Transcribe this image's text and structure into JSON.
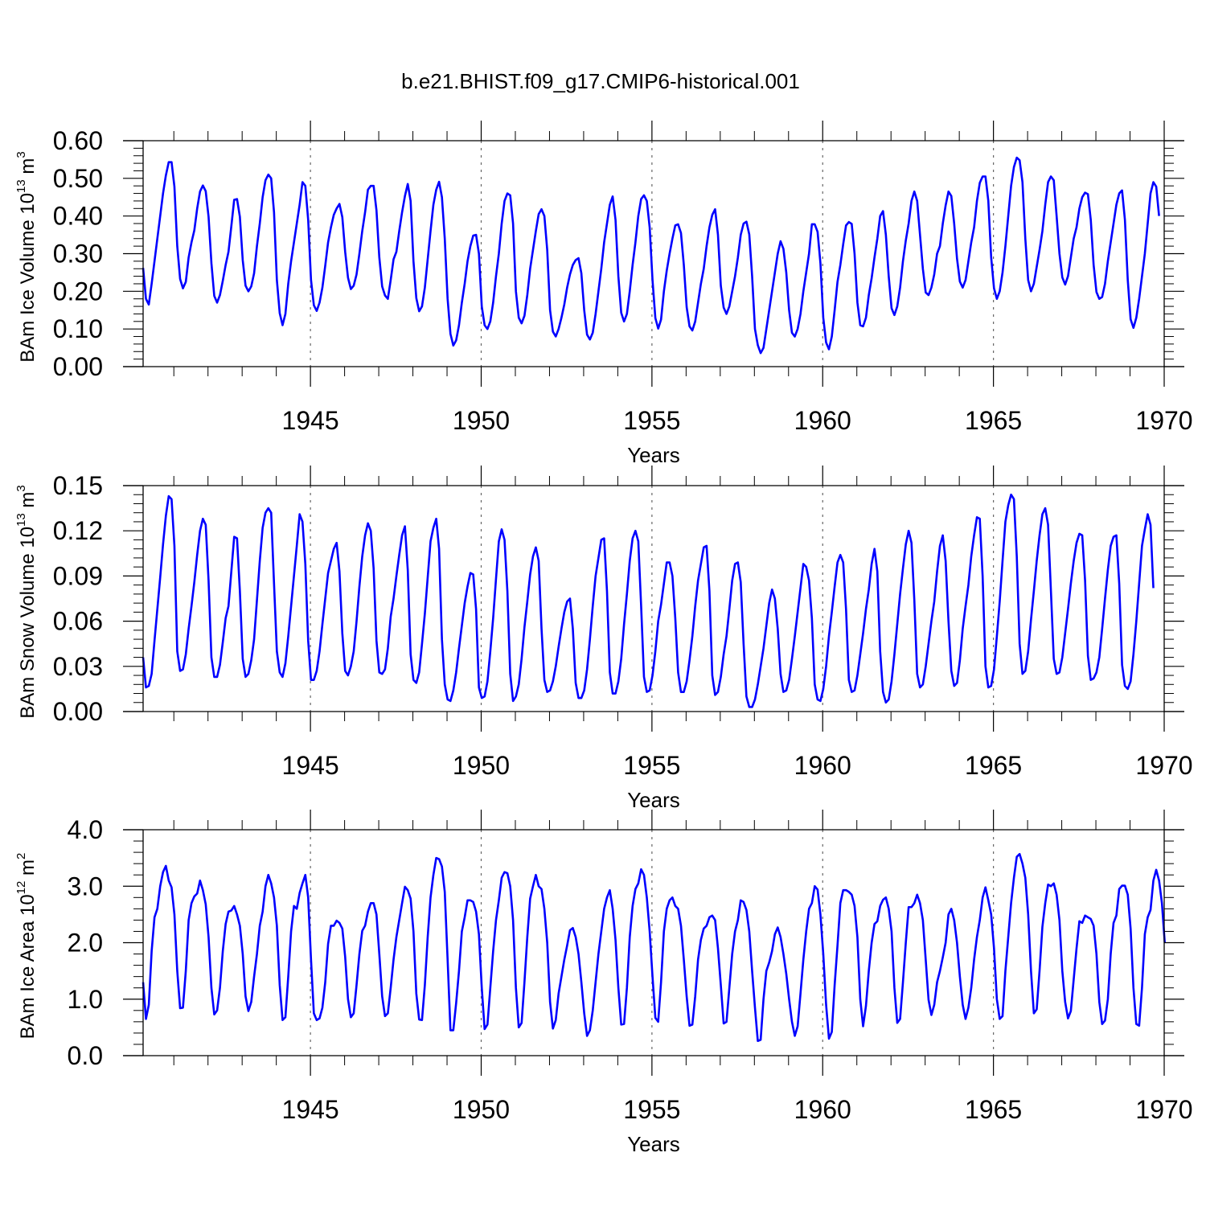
{
  "title": "b.e21.BHIST.f09_g17.CMIP6-historical.001",
  "series_color": "#0000ff",
  "chart_data": [
    {
      "type": "line",
      "name": "ice-volume",
      "ylabel_main": "BAm Ice Volume 10",
      "ylabel_exp": "13",
      "ylabel_unit": " m",
      "ylabel_unit_exp": "3",
      "xlabel": "Years",
      "xlim": [
        1940.1,
        1970.0
      ],
      "ylim": [
        0.0,
        0.6
      ],
      "yticks": [
        0.0,
        0.1,
        0.2,
        0.3,
        0.4,
        0.5,
        0.6
      ],
      "ytick_labels": [
        "0.00",
        "0.10",
        "0.20",
        "0.30",
        "0.40",
        "0.50",
        "0.60"
      ],
      "xticks": [
        1945,
        1950,
        1955,
        1960,
        1965,
        1970
      ],
      "xtick_labels": [
        "1945",
        "1950",
        "1955",
        "1960",
        "1965",
        "1970"
      ],
      "gridlines_x": [
        1945,
        1950,
        1955,
        1960,
        1965
      ],
      "x_start": 1940.1,
      "x_step": 0.0833333,
      "values": [
        0.262,
        0.18,
        0.165,
        0.22,
        0.28,
        0.34,
        0.4,
        0.46,
        0.508,
        0.543,
        0.543,
        0.478,
        0.32,
        0.233,
        0.208,
        0.225,
        0.29,
        0.33,
        0.362,
        0.42,
        0.465,
        0.481,
        0.466,
        0.398,
        0.275,
        0.188,
        0.17,
        0.19,
        0.228,
        0.27,
        0.305,
        0.373,
        0.443,
        0.445,
        0.398,
        0.283,
        0.215,
        0.2,
        0.213,
        0.248,
        0.32,
        0.38,
        0.45,
        0.495,
        0.51,
        0.5,
        0.41,
        0.23,
        0.142,
        0.11,
        0.14,
        0.22,
        0.28,
        0.33,
        0.38,
        0.43,
        0.49,
        0.48,
        0.39,
        0.23,
        0.163,
        0.148,
        0.17,
        0.21,
        0.268,
        0.33,
        0.37,
        0.403,
        0.42,
        0.432,
        0.397,
        0.305,
        0.236,
        0.206,
        0.215,
        0.245,
        0.3,
        0.36,
        0.41,
        0.47,
        0.48,
        0.48,
        0.415,
        0.29,
        0.213,
        0.189,
        0.18,
        0.23,
        0.285,
        0.305,
        0.36,
        0.41,
        0.453,
        0.485,
        0.44,
        0.28,
        0.182,
        0.147,
        0.16,
        0.21,
        0.285,
        0.36,
        0.43,
        0.47,
        0.491,
        0.45,
        0.34,
        0.18,
        0.087,
        0.056,
        0.07,
        0.11,
        0.17,
        0.22,
        0.28,
        0.32,
        0.348,
        0.35,
        0.3,
        0.16,
        0.11,
        0.1,
        0.12,
        0.17,
        0.24,
        0.3,
        0.38,
        0.44,
        0.46,
        0.455,
        0.38,
        0.2,
        0.13,
        0.115,
        0.135,
        0.19,
        0.26,
        0.31,
        0.36,
        0.405,
        0.418,
        0.4,
        0.31,
        0.15,
        0.093,
        0.08,
        0.1,
        0.13,
        0.165,
        0.21,
        0.245,
        0.27,
        0.283,
        0.288,
        0.248,
        0.15,
        0.085,
        0.072,
        0.09,
        0.14,
        0.2,
        0.26,
        0.33,
        0.38,
        0.43,
        0.452,
        0.39,
        0.24,
        0.143,
        0.12,
        0.14,
        0.2,
        0.27,
        0.33,
        0.4,
        0.445,
        0.455,
        0.44,
        0.37,
        0.23,
        0.129,
        0.101,
        0.125,
        0.2,
        0.255,
        0.3,
        0.34,
        0.375,
        0.378,
        0.355,
        0.27,
        0.158,
        0.107,
        0.096,
        0.12,
        0.17,
        0.22,
        0.26,
        0.32,
        0.37,
        0.403,
        0.418,
        0.35,
        0.215,
        0.157,
        0.14,
        0.16,
        0.2,
        0.24,
        0.29,
        0.35,
        0.38,
        0.385,
        0.351,
        0.24,
        0.1,
        0.057,
        0.036,
        0.05,
        0.1,
        0.15,
        0.2,
        0.25,
        0.3,
        0.333,
        0.313,
        0.25,
        0.15,
        0.09,
        0.08,
        0.1,
        0.14,
        0.2,
        0.25,
        0.3,
        0.378,
        0.378,
        0.358,
        0.275,
        0.13,
        0.064,
        0.046,
        0.08,
        0.15,
        0.225,
        0.27,
        0.325,
        0.375,
        0.384,
        0.379,
        0.3,
        0.17,
        0.11,
        0.107,
        0.13,
        0.19,
        0.235,
        0.29,
        0.34,
        0.4,
        0.413,
        0.35,
        0.24,
        0.155,
        0.137,
        0.16,
        0.21,
        0.28,
        0.335,
        0.38,
        0.44,
        0.465,
        0.44,
        0.35,
        0.26,
        0.197,
        0.19,
        0.21,
        0.245,
        0.3,
        0.32,
        0.38,
        0.428,
        0.465,
        0.453,
        0.38,
        0.287,
        0.226,
        0.21,
        0.23,
        0.28,
        0.33,
        0.37,
        0.44,
        0.488,
        0.505,
        0.505,
        0.44,
        0.29,
        0.208,
        0.18,
        0.2,
        0.25,
        0.32,
        0.4,
        0.48,
        0.53,
        0.555,
        0.548,
        0.49,
        0.34,
        0.23,
        0.2,
        0.22,
        0.265,
        0.31,
        0.36,
        0.43,
        0.49,
        0.505,
        0.495,
        0.4,
        0.3,
        0.237,
        0.218,
        0.24,
        0.29,
        0.34,
        0.37,
        0.42,
        0.45,
        0.462,
        0.458,
        0.39,
        0.27,
        0.198,
        0.18,
        0.185,
        0.22,
        0.28,
        0.33,
        0.38,
        0.43,
        0.46,
        0.468,
        0.39,
        0.23,
        0.126,
        0.103,
        0.13,
        0.18,
        0.24,
        0.3,
        0.38,
        0.46,
        0.49,
        0.478,
        0.4
      ]
    },
    {
      "type": "line",
      "name": "snow-volume",
      "ylabel_main": "BAm Snow Volume 10",
      "ylabel_exp": "13",
      "ylabel_unit": " m",
      "ylabel_unit_exp": "3",
      "xlabel": "Years",
      "xlim": [
        1940.1,
        1970.0
      ],
      "ylim": [
        0.0,
        0.15
      ],
      "yticks": [
        0.0,
        0.03,
        0.06,
        0.09,
        0.12,
        0.15
      ],
      "ytick_labels": [
        "0.00",
        "0.03",
        "0.06",
        "0.09",
        "0.12",
        "0.15"
      ],
      "xticks": [
        1945,
        1950,
        1955,
        1960,
        1965,
        1970
      ],
      "xtick_labels": [
        "1945",
        "1950",
        "1955",
        "1960",
        "1965",
        "1970"
      ],
      "gridlines_x": [
        1945,
        1950,
        1955,
        1960,
        1965
      ],
      "x_start": 1940.1,
      "x_step": 0.0833333,
      "values": [
        0.036,
        0.016,
        0.017,
        0.025,
        0.047,
        0.068,
        0.089,
        0.111,
        0.13,
        0.143,
        0.141,
        0.11,
        0.04,
        0.027,
        0.028,
        0.038,
        0.055,
        0.07,
        0.086,
        0.104,
        0.12,
        0.128,
        0.124,
        0.087,
        0.036,
        0.023,
        0.023,
        0.031,
        0.046,
        0.062,
        0.07,
        0.093,
        0.116,
        0.115,
        0.08,
        0.035,
        0.023,
        0.025,
        0.034,
        0.048,
        0.074,
        0.1,
        0.122,
        0.132,
        0.135,
        0.132,
        0.085,
        0.04,
        0.026,
        0.023,
        0.032,
        0.05,
        0.07,
        0.09,
        0.11,
        0.131,
        0.126,
        0.098,
        0.047,
        0.021,
        0.021,
        0.027,
        0.04,
        0.058,
        0.075,
        0.092,
        0.1,
        0.108,
        0.112,
        0.093,
        0.052,
        0.027,
        0.024,
        0.03,
        0.04,
        0.06,
        0.083,
        0.103,
        0.117,
        0.125,
        0.12,
        0.095,
        0.047,
        0.026,
        0.025,
        0.028,
        0.042,
        0.063,
        0.075,
        0.09,
        0.104,
        0.117,
        0.123,
        0.094,
        0.038,
        0.021,
        0.019,
        0.026,
        0.045,
        0.065,
        0.089,
        0.113,
        0.122,
        0.128,
        0.108,
        0.048,
        0.018,
        0.008,
        0.007,
        0.014,
        0.026,
        0.042,
        0.057,
        0.072,
        0.083,
        0.092,
        0.091,
        0.068,
        0.016,
        0.009,
        0.01,
        0.02,
        0.04,
        0.062,
        0.088,
        0.113,
        0.121,
        0.114,
        0.08,
        0.025,
        0.007,
        0.01,
        0.018,
        0.035,
        0.056,
        0.073,
        0.091,
        0.103,
        0.109,
        0.1,
        0.055,
        0.021,
        0.013,
        0.014,
        0.02,
        0.03,
        0.043,
        0.055,
        0.066,
        0.073,
        0.075,
        0.055,
        0.019,
        0.009,
        0.009,
        0.014,
        0.028,
        0.048,
        0.07,
        0.09,
        0.102,
        0.114,
        0.115,
        0.08,
        0.026,
        0.012,
        0.012,
        0.02,
        0.035,
        0.058,
        0.078,
        0.1,
        0.115,
        0.12,
        0.113,
        0.07,
        0.023,
        0.013,
        0.014,
        0.024,
        0.04,
        0.06,
        0.071,
        0.085,
        0.099,
        0.099,
        0.09,
        0.062,
        0.026,
        0.013,
        0.013,
        0.02,
        0.034,
        0.05,
        0.07,
        0.087,
        0.098,
        0.109,
        0.11,
        0.08,
        0.024,
        0.011,
        0.013,
        0.023,
        0.038,
        0.05,
        0.068,
        0.087,
        0.098,
        0.099,
        0.086,
        0.045,
        0.01,
        0.003,
        0.003,
        0.008,
        0.018,
        0.03,
        0.042,
        0.057,
        0.072,
        0.081,
        0.075,
        0.055,
        0.025,
        0.013,
        0.014,
        0.021,
        0.035,
        0.05,
        0.066,
        0.082,
        0.098,
        0.096,
        0.087,
        0.062,
        0.018,
        0.008,
        0.007,
        0.015,
        0.03,
        0.05,
        0.066,
        0.083,
        0.099,
        0.104,
        0.099,
        0.068,
        0.021,
        0.013,
        0.014,
        0.024,
        0.038,
        0.052,
        0.068,
        0.081,
        0.098,
        0.108,
        0.093,
        0.04,
        0.013,
        0.006,
        0.008,
        0.02,
        0.038,
        0.058,
        0.078,
        0.095,
        0.111,
        0.12,
        0.112,
        0.074,
        0.025,
        0.016,
        0.018,
        0.03,
        0.045,
        0.06,
        0.073,
        0.093,
        0.11,
        0.117,
        0.1,
        0.06,
        0.027,
        0.017,
        0.019,
        0.034,
        0.055,
        0.07,
        0.084,
        0.103,
        0.117,
        0.129,
        0.128,
        0.09,
        0.03,
        0.016,
        0.017,
        0.028,
        0.05,
        0.073,
        0.1,
        0.126,
        0.137,
        0.144,
        0.141,
        0.103,
        0.045,
        0.025,
        0.027,
        0.04,
        0.061,
        0.08,
        0.1,
        0.117,
        0.131,
        0.135,
        0.124,
        0.08,
        0.035,
        0.025,
        0.026,
        0.036,
        0.052,
        0.068,
        0.085,
        0.1,
        0.112,
        0.118,
        0.117,
        0.087,
        0.037,
        0.021,
        0.022,
        0.026,
        0.036,
        0.055,
        0.075,
        0.094,
        0.11,
        0.116,
        0.117,
        0.085,
        0.031,
        0.017,
        0.015,
        0.02,
        0.038,
        0.06,
        0.085,
        0.11,
        0.121,
        0.131,
        0.124,
        0.082
      ]
    },
    {
      "type": "line",
      "name": "ice-area",
      "ylabel_main": "BAm Ice Area 10",
      "ylabel_exp": "12",
      "ylabel_unit": " m",
      "ylabel_unit_exp": "2",
      "xlabel": "Years",
      "xlim": [
        1940.1,
        1970.0
      ],
      "ylim": [
        0.0,
        4.0
      ],
      "yticks": [
        0.0,
        1.0,
        2.0,
        3.0,
        4.0
      ],
      "ytick_labels": [
        "0.0",
        "1.0",
        "2.0",
        "3.0",
        "4.0"
      ],
      "xticks": [
        1945,
        1950,
        1955,
        1960,
        1965,
        1970
      ],
      "xtick_labels": [
        "1945",
        "1950",
        "1955",
        "1960",
        "1965",
        "1970"
      ],
      "gridlines_x": [
        1945,
        1950,
        1955,
        1960,
        1965
      ],
      "x_start": 1940.1,
      "x_step": 0.0833333,
      "values": [
        1.3,
        0.65,
        0.9,
        1.85,
        2.45,
        2.6,
        3.0,
        3.25,
        3.36,
        3.1,
        2.98,
        2.5,
        1.5,
        0.84,
        0.85,
        1.5,
        2.4,
        2.7,
        2.82,
        2.87,
        3.1,
        2.93,
        2.68,
        2.1,
        1.2,
        0.73,
        0.8,
        1.2,
        1.85,
        2.33,
        2.55,
        2.57,
        2.65,
        2.5,
        2.3,
        1.8,
        1.05,
        0.79,
        0.95,
        1.4,
        1.8,
        2.3,
        2.55,
        3.0,
        3.2,
        3.05,
        2.8,
        2.3,
        1.25,
        0.63,
        0.68,
        1.4,
        2.2,
        2.65,
        2.6,
        2.88,
        3.05,
        3.2,
        2.8,
        1.7,
        0.75,
        0.63,
        0.66,
        0.85,
        1.3,
        1.98,
        2.3,
        2.3,
        2.39,
        2.35,
        2.25,
        1.75,
        1.0,
        0.68,
        0.75,
        1.25,
        1.8,
        2.21,
        2.3,
        2.55,
        2.7,
        2.7,
        2.5,
        1.8,
        1.05,
        0.7,
        0.75,
        1.2,
        1.7,
        2.1,
        2.4,
        2.7,
        2.99,
        2.93,
        2.78,
        2.2,
        1.1,
        0.64,
        0.63,
        1.25,
        2.1,
        2.8,
        3.2,
        3.5,
        3.48,
        3.35,
        2.9,
        1.7,
        0.45,
        0.45,
        0.93,
        1.5,
        2.2,
        2.45,
        2.75,
        2.75,
        2.72,
        2.55,
        2.15,
        1.2,
        0.47,
        0.55,
        1.2,
        1.85,
        2.4,
        2.75,
        3.15,
        3.25,
        3.23,
        3.0,
        2.4,
        1.2,
        0.5,
        0.58,
        1.3,
        2.1,
        2.78,
        3.0,
        3.2,
        3.0,
        2.95,
        2.6,
        2.0,
        0.95,
        0.48,
        0.63,
        1.1,
        1.4,
        1.7,
        1.95,
        2.22,
        2.26,
        2.1,
        1.8,
        1.3,
        0.75,
        0.35,
        0.45,
        0.8,
        1.3,
        1.8,
        2.2,
        2.6,
        2.8,
        2.93,
        2.6,
        2.05,
        1.2,
        0.55,
        0.56,
        1.2,
        2.1,
        2.65,
        2.95,
        3.05,
        3.3,
        3.2,
        2.8,
        2.2,
        1.4,
        0.67,
        0.6,
        1.3,
        2.2,
        2.6,
        2.75,
        2.8,
        2.65,
        2.6,
        2.3,
        1.7,
        1.05,
        0.53,
        0.55,
        1.05,
        1.7,
        2.05,
        2.25,
        2.3,
        2.45,
        2.48,
        2.4,
        1.9,
        1.25,
        0.57,
        0.6,
        1.2,
        1.8,
        2.2,
        2.4,
        2.75,
        2.72,
        2.58,
        2.2,
        1.5,
        0.85,
        0.26,
        0.28,
        1.0,
        1.5,
        1.65,
        1.85,
        2.15,
        2.27,
        2.1,
        1.8,
        1.45,
        1.0,
        0.6,
        0.35,
        0.52,
        1.1,
        1.7,
        2.2,
        2.6,
        2.7,
        3.0,
        2.94,
        2.5,
        1.8,
        0.9,
        0.3,
        0.42,
        1.25,
        1.95,
        2.7,
        2.93,
        2.93,
        2.9,
        2.85,
        2.65,
        2.1,
        1.0,
        0.52,
        0.88,
        1.5,
        2.0,
        2.33,
        2.38,
        2.65,
        2.76,
        2.8,
        2.6,
        2.2,
        1.2,
        0.58,
        0.65,
        1.3,
        2.0,
        2.63,
        2.63,
        2.7,
        2.85,
        2.7,
        2.4,
        1.7,
        0.99,
        0.72,
        0.9,
        1.3,
        1.5,
        1.74,
        2.0,
        2.5,
        2.6,
        2.4,
        2.0,
        1.4,
        0.9,
        0.65,
        0.85,
        1.2,
        1.7,
        2.1,
        2.4,
        2.8,
        2.98,
        2.75,
        2.5,
        1.9,
        1.0,
        0.65,
        0.7,
        1.5,
        2.1,
        2.7,
        3.15,
        3.52,
        3.57,
        3.4,
        3.15,
        2.5,
        1.5,
        0.75,
        0.82,
        1.5,
        2.28,
        2.7,
        3.03,
        3.0,
        3.05,
        2.85,
        2.4,
        1.5,
        0.95,
        0.66,
        0.79,
        1.35,
        1.9,
        2.38,
        2.35,
        2.48,
        2.45,
        2.42,
        2.3,
        1.8,
        0.95,
        0.56,
        0.62,
        1.0,
        1.8,
        2.35,
        2.48,
        2.95,
        3.01,
        3.01,
        2.85,
        2.25,
        1.2,
        0.56,
        0.53,
        1.2,
        2.15,
        2.45,
        2.58,
        3.1,
        3.29,
        3.1,
        2.7,
        2.0
      ]
    }
  ]
}
